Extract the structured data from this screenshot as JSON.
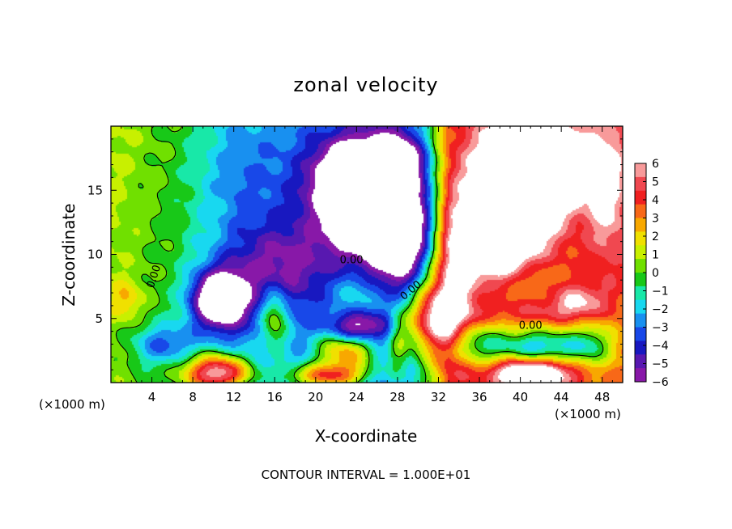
{
  "chart_data": {
    "type": "heatmap",
    "title": "zonal velocity",
    "xlabel": "X-coordinate",
    "ylabel": "Z-coordinate",
    "x_unit_left": "(×1000 m)",
    "x_unit_right": "(×1000 m)",
    "footer": "CONTOUR INTERVAL = 1.000E+01",
    "xlim": [
      0,
      50
    ],
    "ylim": [
      0,
      20
    ],
    "x_ticks": [
      4,
      8,
      12,
      16,
      20,
      24,
      28,
      32,
      36,
      40,
      44,
      48
    ],
    "y_ticks": [
      5,
      10,
      15
    ],
    "colorbar": {
      "ticks": [
        6,
        5,
        4,
        3,
        2,
        1,
        0,
        -1,
        -2,
        -3,
        -4,
        -5,
        -6
      ],
      "colors": [
        "#f89a9a",
        "#f04850",
        "#f02020",
        "#f86818",
        "#f8a800",
        "#f0e000",
        "#c8f000",
        "#70e000",
        "#18c818",
        "#18e8a8",
        "#18d8f0",
        "#1890f0",
        "#1848e8",
        "#1818c0",
        "#5818b0",
        "#8818a8"
      ]
    },
    "contour_labels": [
      "0.00",
      "0.00",
      "0.00",
      "0.00"
    ],
    "blobs": [
      {
        "x": 40,
        "z": 16,
        "rx": 4.4,
        "rz": 5.0,
        "v": 9
      },
      {
        "x": 37.5,
        "z": 11,
        "rx": 3.2,
        "rz": 2.6,
        "v": 7
      },
      {
        "x": 44.5,
        "z": 17,
        "rx": 3.0,
        "rz": 2.6,
        "v": 5
      },
      {
        "x": 48.5,
        "z": 15,
        "rx": 2.0,
        "rz": 6.0,
        "v": 3
      },
      {
        "x": 33.5,
        "z": 8,
        "rx": 2.4,
        "rz": 9.0,
        "v": 4
      },
      {
        "x": 31,
        "z": 5,
        "rx": 2.6,
        "rz": 2.8,
        "v": 6
      },
      {
        "x": 28,
        "z": 3,
        "rx": 1.0,
        "rz": 3.5,
        "v": 3
      },
      {
        "x": 23,
        "z": 2.5,
        "rx": 3.2,
        "rz": 1.8,
        "v": 6
      },
      {
        "x": 24.5,
        "z": 6.8,
        "rx": 3.6,
        "rz": 2.2,
        "v": 2
      },
      {
        "x": 16,
        "z": 5,
        "rx": 1.4,
        "rz": 2.4,
        "v": 4
      },
      {
        "x": 10.5,
        "z": 0.8,
        "rx": 3.2,
        "rz": 1.4,
        "v": 8
      },
      {
        "x": 21,
        "z": 0.5,
        "rx": 4.0,
        "rz": 1.0,
        "v": 6
      },
      {
        "x": 41,
        "z": 0.7,
        "rx": 4.0,
        "rz": 1.2,
        "v": 7
      },
      {
        "x": 1.5,
        "z": 6.5,
        "rx": 1.5,
        "rz": 1.5,
        "v": 2
      },
      {
        "x": 40,
        "z": 5.5,
        "rx": 5.0,
        "rz": 0.9,
        "v": 1.5
      },
      {
        "x": 45.5,
        "z": 6.3,
        "rx": 2.6,
        "rz": 1.4,
        "v": 3
      },
      {
        "x": 24,
        "z": 16,
        "rx": 4.0,
        "rz": 3.0,
        "v": -8
      },
      {
        "x": 10.5,
        "z": 6.5,
        "rx": 2.6,
        "rz": 2.2,
        "v": -8
      },
      {
        "x": 26,
        "z": 12.5,
        "rx": 5.5,
        "rz": 3.5,
        "v": -4.5
      },
      {
        "x": 16,
        "z": 9,
        "rx": 5.0,
        "rz": 3.5,
        "v": -3
      },
      {
        "x": 24,
        "z": 4.3,
        "rx": 2.6,
        "rz": 1.2,
        "v": -5
      },
      {
        "x": 28.5,
        "z": 12,
        "rx": 3.0,
        "rz": 6.0,
        "v": -4.5
      },
      {
        "x": 35,
        "z": 3,
        "rx": 3.0,
        "rz": 1.6,
        "v": -4
      },
      {
        "x": 42,
        "z": 2.8,
        "rx": 4.5,
        "rz": 1.4,
        "v": -5
      },
      {
        "x": 47,
        "z": 3,
        "rx": 2.2,
        "rz": 1.8,
        "v": -3
      },
      {
        "x": 41,
        "z": 8.5,
        "rx": 2.0,
        "rz": 1.2,
        "v": -1
      },
      {
        "x": 5,
        "z": 3,
        "rx": 3.0,
        "rz": 1.6,
        "v": -3
      },
      {
        "x": 13,
        "z": 16,
        "rx": 5.0,
        "rz": 4.0,
        "v": -0.8
      },
      {
        "x": 29,
        "z": 17.5,
        "rx": 3.0,
        "rz": 2.0,
        "v": -2.5
      }
    ],
    "background_ramp": [
      {
        "x": 0,
        "v": 0.8
      },
      {
        "x": 6,
        "v": -0.3
      },
      {
        "x": 12,
        "v": -2.2
      },
      {
        "x": 20,
        "v": -3.0
      },
      {
        "x": 28,
        "v": -3.4
      },
      {
        "x": 31,
        "v": -0.5
      },
      {
        "x": 33,
        "v": 2.5
      },
      {
        "x": 50,
        "v": 3.5
      }
    ]
  }
}
